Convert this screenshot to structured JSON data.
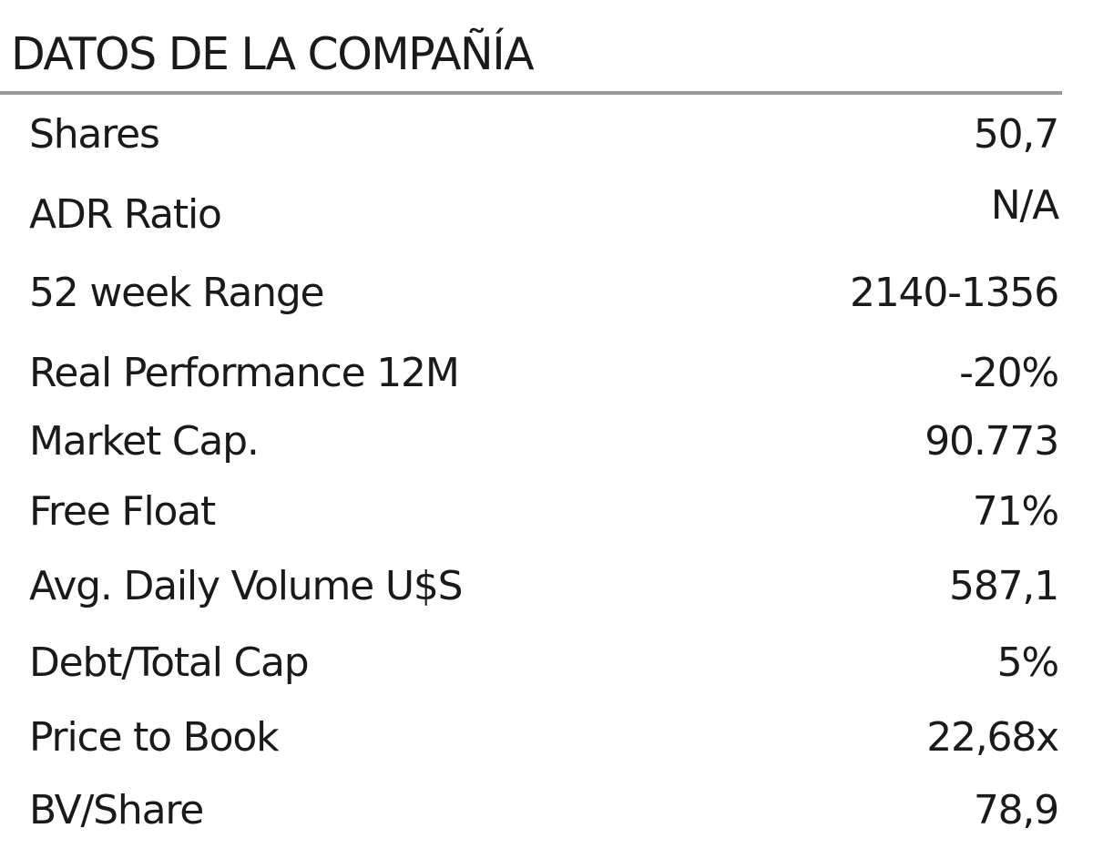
{
  "title": "DATOS DE LA COMPAÑÍA",
  "rows": [
    {
      "label": "Shares",
      "value": "50,7"
    },
    {
      "label": "ADR Ratio",
      "value": "N/A"
    },
    {
      "label": "52 week Range",
      "value": "2140-1356"
    },
    {
      "label": "Real Performance 12M",
      "value": "-20%"
    },
    {
      "label": "Market Cap.",
      "value": "90.773"
    },
    {
      "label": "Free Float",
      "value": "71%"
    },
    {
      "label": "Avg. Daily Volume U$S",
      "value": "587,1"
    },
    {
      "label": "Debt/Total Cap",
      "value": "5%"
    },
    {
      "label": "Price to Book",
      "value": "22,68x"
    },
    {
      "label": "BV/Share",
      "value": "78,9"
    }
  ]
}
